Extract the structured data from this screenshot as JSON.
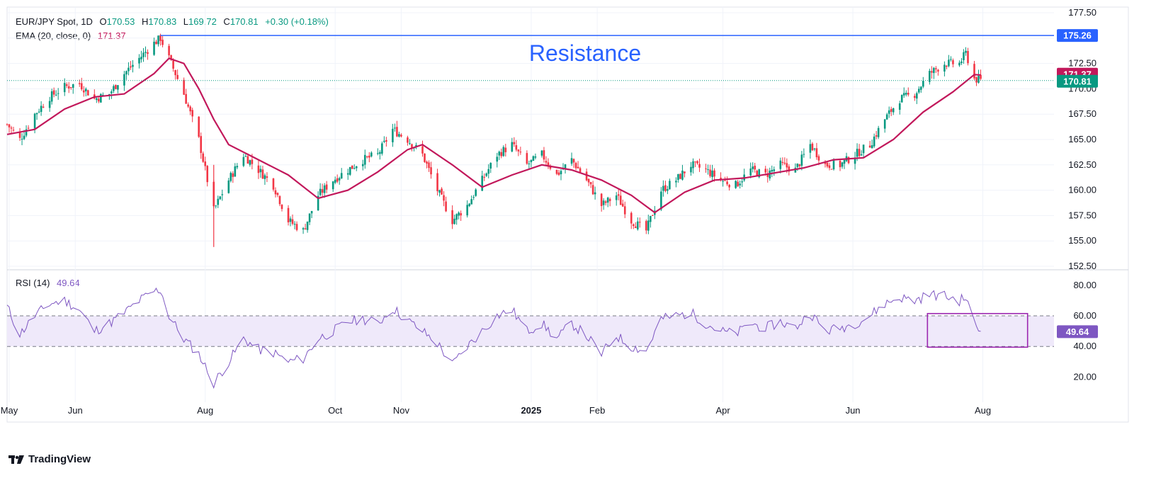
{
  "header": {
    "symbol": "EUR/JPY Spot, 1D",
    "o_label": "O",
    "open": "170.53",
    "h_label": "H",
    "high": "170.83",
    "l_label": "L",
    "low": "169.72",
    "c_label": "C",
    "close": "170.81",
    "change": "+0.30 (+0.18%)"
  },
  "ema_legend": {
    "label": "EMA (20, close, 0)",
    "value": "171.37"
  },
  "rsi_legend": {
    "label": "RSI (14)",
    "value": "49.64"
  },
  "annotation": {
    "text": "Resistance"
  },
  "brand": {
    "text": "TradingView"
  },
  "colors": {
    "up": "#089981",
    "down": "#F23645",
    "ema": "#C2185B",
    "rsi": "#7E57C2",
    "resistance": "#2962FF",
    "rsi_band": "#EFE9FA",
    "box": "#9C27B0"
  },
  "chart_data": [
    {
      "type": "candlestick",
      "title": "EUR/JPY Spot, 1D",
      "ylim": [
        152.5,
        177.5
      ],
      "y_ticks": [
        "177.50",
        "175.00",
        "172.50",
        "170.00",
        "167.50",
        "165.00",
        "162.50",
        "160.00",
        "157.50",
        "155.00",
        "152.50"
      ],
      "x_ticks": [
        {
          "date": "2024-05-01",
          "label": "May"
        },
        {
          "date": "2024-06-01",
          "label": "Jun"
        },
        {
          "date": "2024-08-01",
          "label": "Aug"
        },
        {
          "date": "2024-10-01",
          "label": "Oct"
        },
        {
          "date": "2024-11-01",
          "label": "Nov"
        },
        {
          "date": "2025-01-01",
          "label": "2025"
        },
        {
          "date": "2025-02-01",
          "label": "Feb"
        },
        {
          "date": "2025-04-01",
          "label": "Apr"
        },
        {
          "date": "2025-06-01",
          "label": "Jun"
        },
        {
          "date": "2025-08-01",
          "label": "Aug"
        }
      ],
      "x_range": [
        "2024-04-30",
        "2025-09-30"
      ],
      "resistance": {
        "label": "Resistance",
        "value": 175.26,
        "price_label": "175.26",
        "from": "2024-07-11"
      },
      "ema_label": "171.37",
      "last_price_label": "170.81",
      "last_close": 170.81,
      "close_path": [
        [
          "2024-04-30",
          166.5
        ],
        [
          "2024-05-06",
          165.0
        ],
        [
          "2024-05-13",
          167.5
        ],
        [
          "2024-05-20",
          169.2
        ],
        [
          "2024-05-27",
          170.2
        ],
        [
          "2024-06-03",
          170.5
        ],
        [
          "2024-06-10",
          169.0
        ],
        [
          "2024-06-17",
          169.5
        ],
        [
          "2024-06-24",
          171.5
        ],
        [
          "2024-07-01",
          173.0
        ],
        [
          "2024-07-08",
          174.5
        ],
        [
          "2024-07-11",
          175.0
        ],
        [
          "2024-07-15",
          173.0
        ],
        [
          "2024-07-22",
          169.5
        ],
        [
          "2024-07-29",
          165.0
        ],
        [
          "2024-08-05",
          158.0
        ],
        [
          "2024-08-12",
          161.0
        ],
        [
          "2024-08-19",
          163.5
        ],
        [
          "2024-08-26",
          162.0
        ],
        [
          "2024-09-02",
          160.5
        ],
        [
          "2024-09-09",
          157.0
        ],
        [
          "2024-09-16",
          156.0
        ],
        [
          "2024-09-23",
          159.5
        ],
        [
          "2024-09-30",
          161.0
        ],
        [
          "2024-10-07",
          162.0
        ],
        [
          "2024-10-14",
          163.0
        ],
        [
          "2024-10-21",
          163.5
        ],
        [
          "2024-10-28",
          166.0
        ],
        [
          "2024-11-04",
          165.0
        ],
        [
          "2024-11-11",
          163.5
        ],
        [
          "2024-11-18",
          160.0
        ],
        [
          "2024-11-25",
          157.0
        ],
        [
          "2024-12-02",
          158.5
        ],
        [
          "2024-12-09",
          161.0
        ],
        [
          "2024-12-16",
          163.5
        ],
        [
          "2024-12-23",
          164.5
        ],
        [
          "2024-12-30",
          162.5
        ],
        [
          "2025-01-06",
          163.5
        ],
        [
          "2025-01-13",
          161.5
        ],
        [
          "2025-01-20",
          163.0
        ],
        [
          "2025-01-27",
          161.0
        ],
        [
          "2025-02-03",
          158.5
        ],
        [
          "2025-02-10",
          159.5
        ],
        [
          "2025-02-17",
          157.0
        ],
        [
          "2025-02-24",
          156.0
        ],
        [
          "2025-03-03",
          160.0
        ],
        [
          "2025-03-10",
          161.0
        ],
        [
          "2025-03-17",
          162.5
        ],
        [
          "2025-03-24",
          162.0
        ],
        [
          "2025-03-31",
          161.0
        ],
        [
          "2025-04-07",
          160.5
        ],
        [
          "2025-04-14",
          162.0
        ],
        [
          "2025-04-21",
          161.5
        ],
        [
          "2025-04-28",
          162.5
        ],
        [
          "2025-05-05",
          162.0
        ],
        [
          "2025-05-12",
          164.5
        ],
        [
          "2025-05-19",
          162.5
        ],
        [
          "2025-05-26",
          162.5
        ],
        [
          "2025-06-02",
          163.5
        ],
        [
          "2025-06-09",
          164.5
        ],
        [
          "2025-06-16",
          167.0
        ],
        [
          "2025-06-23",
          169.0
        ],
        [
          "2025-06-30",
          169.5
        ],
        [
          "2025-07-07",
          171.5
        ],
        [
          "2025-07-14",
          172.5
        ],
        [
          "2025-07-21",
          172.5
        ],
        [
          "2025-07-24",
          173.5
        ],
        [
          "2025-07-28",
          171.0
        ],
        [
          "2025-07-31",
          170.81
        ]
      ],
      "ema_path": [
        [
          "2024-04-30",
          165.5
        ],
        [
          "2024-05-13",
          166.0
        ],
        [
          "2024-05-27",
          168.0
        ],
        [
          "2024-06-10",
          169.2
        ],
        [
          "2024-06-24",
          169.5
        ],
        [
          "2024-07-08",
          171.5
        ],
        [
          "2024-07-15",
          173.0
        ],
        [
          "2024-07-22",
          172.5
        ],
        [
          "2024-07-29",
          170.0
        ],
        [
          "2024-08-05",
          167.0
        ],
        [
          "2024-08-12",
          164.5
        ],
        [
          "2024-08-26",
          163.0
        ],
        [
          "2024-09-09",
          161.5
        ],
        [
          "2024-09-23",
          159.2
        ],
        [
          "2024-10-07",
          160.0
        ],
        [
          "2024-10-21",
          161.8
        ],
        [
          "2024-11-04",
          164.0
        ],
        [
          "2024-11-11",
          164.5
        ],
        [
          "2024-11-25",
          162.5
        ],
        [
          "2024-12-09",
          160.3
        ],
        [
          "2024-12-23",
          161.5
        ],
        [
          "2025-01-06",
          162.5
        ],
        [
          "2025-01-20",
          162.0
        ],
        [
          "2025-02-03",
          161.0
        ],
        [
          "2025-02-17",
          159.5
        ],
        [
          "2025-02-28",
          157.8
        ],
        [
          "2025-03-14",
          159.8
        ],
        [
          "2025-03-28",
          161.0
        ],
        [
          "2025-04-11",
          161.2
        ],
        [
          "2025-04-25",
          161.7
        ],
        [
          "2025-05-09",
          162.2
        ],
        [
          "2025-05-23",
          163.0
        ],
        [
          "2025-06-06",
          163.2
        ],
        [
          "2025-06-20",
          165.0
        ],
        [
          "2025-07-04",
          167.7
        ],
        [
          "2025-07-18",
          169.7
        ],
        [
          "2025-07-28",
          171.4
        ],
        [
          "2025-07-31",
          171.37
        ]
      ]
    },
    {
      "type": "line",
      "title": "RSI (14)",
      "ylim": [
        10,
        85
      ],
      "y_ticks": [
        "80.00",
        "60.00",
        "40.00",
        "20.00"
      ],
      "bands": [
        40,
        60
      ],
      "last_value_label": "49.64",
      "highlight_box": {
        "from": "2025-07-06",
        "to": "2025-08-22",
        "y_range": [
          39.5,
          61.5
        ]
      },
      "series": [
        {
          "name": "RSI (14)",
          "points": [
            [
              "2024-04-30",
              66
            ],
            [
              "2024-05-06",
              48
            ],
            [
              "2024-05-13",
              60
            ],
            [
              "2024-05-20",
              68
            ],
            [
              "2024-05-27",
              70
            ],
            [
              "2024-06-03",
              64
            ],
            [
              "2024-06-10",
              50
            ],
            [
              "2024-06-17",
              55
            ],
            [
              "2024-06-24",
              62
            ],
            [
              "2024-07-01",
              70
            ],
            [
              "2024-07-08",
              76
            ],
            [
              "2024-07-11",
              77
            ],
            [
              "2024-07-15",
              60
            ],
            [
              "2024-07-22",
              45
            ],
            [
              "2024-07-29",
              35
            ],
            [
              "2024-08-05",
              16
            ],
            [
              "2024-08-12",
              30
            ],
            [
              "2024-08-19",
              45
            ],
            [
              "2024-08-26",
              38
            ],
            [
              "2024-09-02",
              36
            ],
            [
              "2024-09-09",
              30
            ],
            [
              "2024-09-16",
              32
            ],
            [
              "2024-09-23",
              45
            ],
            [
              "2024-09-30",
              50
            ],
            [
              "2024-10-07",
              56
            ],
            [
              "2024-10-14",
              58
            ],
            [
              "2024-10-21",
              55
            ],
            [
              "2024-10-28",
              65
            ],
            [
              "2024-11-04",
              57
            ],
            [
              "2024-11-11",
              50
            ],
            [
              "2024-11-18",
              42
            ],
            [
              "2024-11-25",
              28
            ],
            [
              "2024-12-02",
              40
            ],
            [
              "2024-12-09",
              50
            ],
            [
              "2024-12-16",
              60
            ],
            [
              "2024-12-23",
              64
            ],
            [
              "2024-12-30",
              50
            ],
            [
              "2025-01-06",
              55
            ],
            [
              "2025-01-13",
              45
            ],
            [
              "2025-01-20",
              55
            ],
            [
              "2025-01-27",
              47
            ],
            [
              "2025-02-03",
              35
            ],
            [
              "2025-02-10",
              47
            ],
            [
              "2025-02-17",
              40
            ],
            [
              "2025-02-24",
              37
            ],
            [
              "2025-03-03",
              58
            ],
            [
              "2025-03-10",
              60
            ],
            [
              "2025-03-17",
              62
            ],
            [
              "2025-03-24",
              55
            ],
            [
              "2025-03-31",
              50
            ],
            [
              "2025-04-07",
              48
            ],
            [
              "2025-04-14",
              55
            ],
            [
              "2025-04-21",
              52
            ],
            [
              "2025-04-28",
              56
            ],
            [
              "2025-05-05",
              52
            ],
            [
              "2025-05-12",
              62
            ],
            [
              "2025-05-19",
              50
            ],
            [
              "2025-05-26",
              52
            ],
            [
              "2025-06-02",
              55
            ],
            [
              "2025-06-09",
              60
            ],
            [
              "2025-06-16",
              68
            ],
            [
              "2025-06-23",
              72
            ],
            [
              "2025-06-30",
              70
            ],
            [
              "2025-07-07",
              74
            ],
            [
              "2025-07-14",
              73
            ],
            [
              "2025-07-21",
              70
            ],
            [
              "2025-07-24",
              72
            ],
            [
              "2025-07-28",
              55
            ],
            [
              "2025-07-31",
              49.64
            ]
          ]
        }
      ],
      "x_ticks": [
        {
          "date": "2024-05-01",
          "label": "May"
        },
        {
          "date": "2024-06-01",
          "label": "Jun"
        },
        {
          "date": "2024-08-01",
          "label": "Aug"
        },
        {
          "date": "2024-10-01",
          "label": "Oct"
        },
        {
          "date": "2024-11-01",
          "label": "Nov"
        },
        {
          "date": "2025-01-01",
          "label": "2025"
        },
        {
          "date": "2025-02-01",
          "label": "Feb"
        },
        {
          "date": "2025-04-01",
          "label": "Apr"
        },
        {
          "date": "2025-06-01",
          "label": "Jun"
        },
        {
          "date": "2025-08-01",
          "label": "Aug"
        }
      ]
    }
  ]
}
